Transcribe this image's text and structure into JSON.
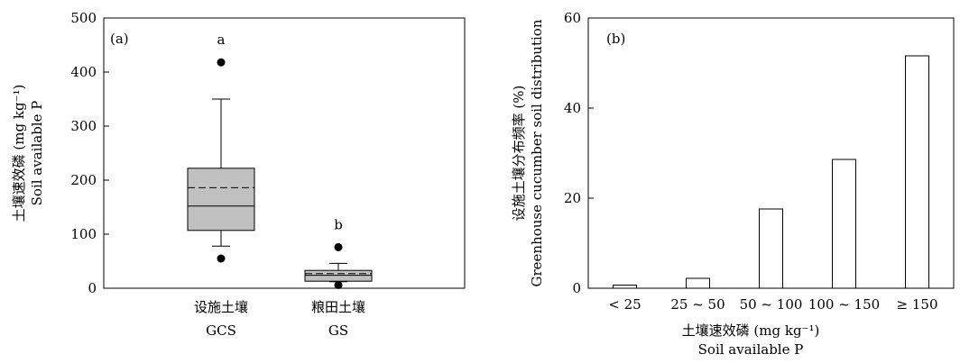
{
  "chart_data": [
    {
      "type": "box",
      "panel_label": "(a)",
      "ylabel_line1": "土壤速效磷 (mg kg⁻¹)",
      "ylabel_line2": "Soil available P",
      "ylim": [
        0,
        500
      ],
      "yticks": [
        0,
        100,
        200,
        300,
        400,
        500
      ],
      "grid": false,
      "groups": [
        {
          "label_cn": "设施土壤",
          "label_en": "GCS",
          "significance": "a",
          "whisker_low": 78,
          "q1": 107,
          "median": 152,
          "mean": 186,
          "q3": 222,
          "whisker_high": 350,
          "outliers": [
            418,
            55
          ],
          "fill": "#c0c0c0"
        },
        {
          "label_cn": "粮田土壤",
          "label_en": "GS",
          "significance": "b",
          "whisker_low": 12,
          "q1": 13,
          "median": 24,
          "mean": 27,
          "q3": 33,
          "whisker_high": 46,
          "outliers": [
            76,
            6
          ],
          "fill": "#c0c0c0"
        }
      ]
    },
    {
      "type": "bar",
      "panel_label": "(b)",
      "ylabel_line1": "设施土壤分布频率 (%)",
      "ylabel_line2": "Greenhouse cucumber soil distribution",
      "xlabel_line1": "土壤速效磷 (mg kg⁻¹)",
      "xlabel_line2": "Soil available P",
      "categories": [
        "< 25",
        "25 ~ 50",
        "50 ~ 100",
        "100 ~ 150",
        "≥ 150"
      ],
      "values": [
        0.7,
        2.2,
        17.6,
        28.6,
        51.6
      ],
      "ylim": [
        0,
        60
      ],
      "yticks": [
        0,
        20,
        40,
        60
      ],
      "grid": false,
      "bar_fill": "#ffffff"
    }
  ]
}
